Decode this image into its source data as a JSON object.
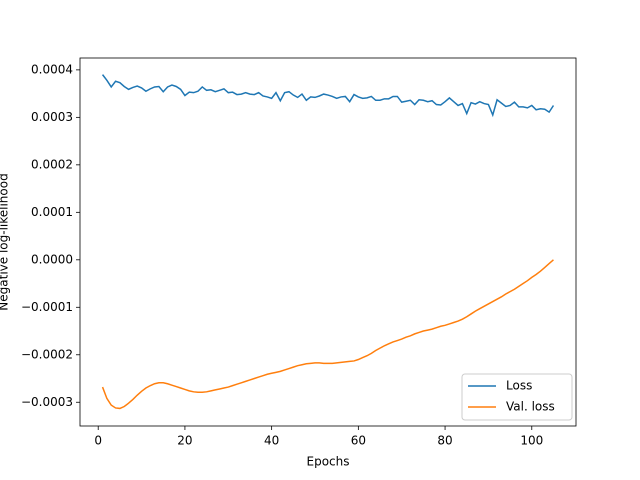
{
  "chart_data": {
    "type": "line",
    "xlabel": "Epochs",
    "ylabel": "Negative log-likelihood",
    "x": [
      1,
      2,
      3,
      4,
      5,
      6,
      7,
      8,
      9,
      10,
      11,
      12,
      13,
      14,
      15,
      16,
      17,
      18,
      19,
      20,
      21,
      22,
      23,
      24,
      25,
      26,
      27,
      28,
      29,
      30,
      31,
      32,
      33,
      34,
      35,
      36,
      37,
      38,
      39,
      40,
      41,
      42,
      43,
      44,
      45,
      46,
      47,
      48,
      49,
      50,
      51,
      52,
      53,
      54,
      55,
      56,
      57,
      58,
      59,
      60,
      61,
      62,
      63,
      64,
      65,
      66,
      67,
      68,
      69,
      70,
      71,
      72,
      73,
      74,
      75,
      76,
      77,
      78,
      79,
      80,
      81,
      82,
      83,
      84,
      85,
      86,
      87,
      88,
      89,
      90,
      91,
      92,
      93,
      94,
      95,
      96,
      97,
      98,
      99,
      100,
      101,
      102,
      103,
      104,
      105
    ],
    "series": [
      {
        "name": "Loss",
        "color": "#1f77b4",
        "values": [
          0.00039,
          0.000378,
          0.000364,
          0.000376,
          0.000373,
          0.000365,
          0.000359,
          0.000363,
          0.000366,
          0.000362,
          0.000355,
          0.00036,
          0.000364,
          0.000365,
          0.000354,
          0.000364,
          0.000368,
          0.000365,
          0.000359,
          0.000346,
          0.000353,
          0.000352,
          0.000355,
          0.000364,
          0.000357,
          0.000358,
          0.000354,
          0.000357,
          0.00036,
          0.000352,
          0.000353,
          0.000348,
          0.000349,
          0.000352,
          0.000349,
          0.000348,
          0.000352,
          0.000345,
          0.000343,
          0.00034,
          0.000352,
          0.000335,
          0.000352,
          0.000354,
          0.000347,
          0.000342,
          0.000349,
          0.000336,
          0.000343,
          0.000342,
          0.000345,
          0.000349,
          0.000347,
          0.000344,
          0.00034,
          0.000343,
          0.000344,
          0.000333,
          0.000348,
          0.000343,
          0.00034,
          0.000341,
          0.000344,
          0.000336,
          0.000336,
          0.000339,
          0.000339,
          0.000344,
          0.000344,
          0.000332,
          0.000334,
          0.000336,
          0.000327,
          0.000337,
          0.000336,
          0.000333,
          0.000335,
          0.000327,
          0.000326,
          0.000333,
          0.000341,
          0.000333,
          0.000325,
          0.000329,
          0.000308,
          0.000331,
          0.000328,
          0.000333,
          0.000329,
          0.000327,
          0.000305,
          0.000337,
          0.00033,
          0.000323,
          0.000325,
          0.000332,
          0.000322,
          0.000322,
          0.00032,
          0.000325,
          0.000316,
          0.000318,
          0.000317,
          0.000311,
          0.000325
        ]
      },
      {
        "name": "Val. loss",
        "color": "#ff7f0e",
        "values": [
          -0.000268,
          -0.000292,
          -0.000306,
          -0.000312,
          -0.000313,
          -0.000309,
          -0.000302,
          -0.000294,
          -0.000285,
          -0.000277,
          -0.00027,
          -0.000265,
          -0.000261,
          -0.000259,
          -0.000259,
          -0.000261,
          -0.000264,
          -0.000267,
          -0.00027,
          -0.000273,
          -0.000276,
          -0.000278,
          -0.000279,
          -0.000279,
          -0.000278,
          -0.000276,
          -0.000274,
          -0.000272,
          -0.00027,
          -0.000268,
          -0.000265,
          -0.000262,
          -0.000259,
          -0.000256,
          -0.000253,
          -0.00025,
          -0.000247,
          -0.000244,
          -0.000241,
          -0.000239,
          -0.000237,
          -0.000235,
          -0.000232,
          -0.000229,
          -0.000226,
          -0.000223,
          -0.000221,
          -0.000219,
          -0.000218,
          -0.000217,
          -0.000217,
          -0.000218,
          -0.000218,
          -0.000218,
          -0.000217,
          -0.000216,
          -0.000215,
          -0.000214,
          -0.000213,
          -0.00021,
          -0.000206,
          -0.000202,
          -0.000197,
          -0.000191,
          -0.000186,
          -0.000181,
          -0.000177,
          -0.000173,
          -0.00017,
          -0.000167,
          -0.000163,
          -0.00016,
          -0.000156,
          -0.000153,
          -0.00015,
          -0.000148,
          -0.000146,
          -0.000143,
          -0.00014,
          -0.000138,
          -0.000135,
          -0.000132,
          -0.000129,
          -0.000125,
          -0.00012,
          -0.000114,
          -0.000108,
          -0.000103,
          -9.8e-05,
          -9.3e-05,
          -8.8e-05,
          -8.3e-05,
          -7.8e-05,
          -7.2e-05,
          -6.7e-05,
          -6.2e-05,
          -5.6e-05,
          -5e-05,
          -4.4e-05,
          -3.7e-05,
          -3.1e-05,
          -2.4e-05,
          -1.6e-05,
          -8e-06,
          0
        ]
      }
    ],
    "xlim": [
      -4.2,
      110.2
    ],
    "xticks": [
      0,
      20,
      40,
      60,
      80,
      100
    ],
    "ylim": [
      -0.00035,
      0.000425
    ],
    "yticks": [
      {
        "value": -0.0003,
        "label": "−0.0003"
      },
      {
        "value": -0.0002,
        "label": "−0.0002"
      },
      {
        "value": -0.0001,
        "label": "−0.0001"
      },
      {
        "value": 0,
        "label": "0.0000"
      },
      {
        "value": 0.0001,
        "label": "0.0001"
      },
      {
        "value": 0.0002,
        "label": "0.0002"
      },
      {
        "value": 0.0003,
        "label": "0.0003"
      },
      {
        "value": 0.0004,
        "label": "0.0004"
      }
    ],
    "legend": "lower right"
  }
}
